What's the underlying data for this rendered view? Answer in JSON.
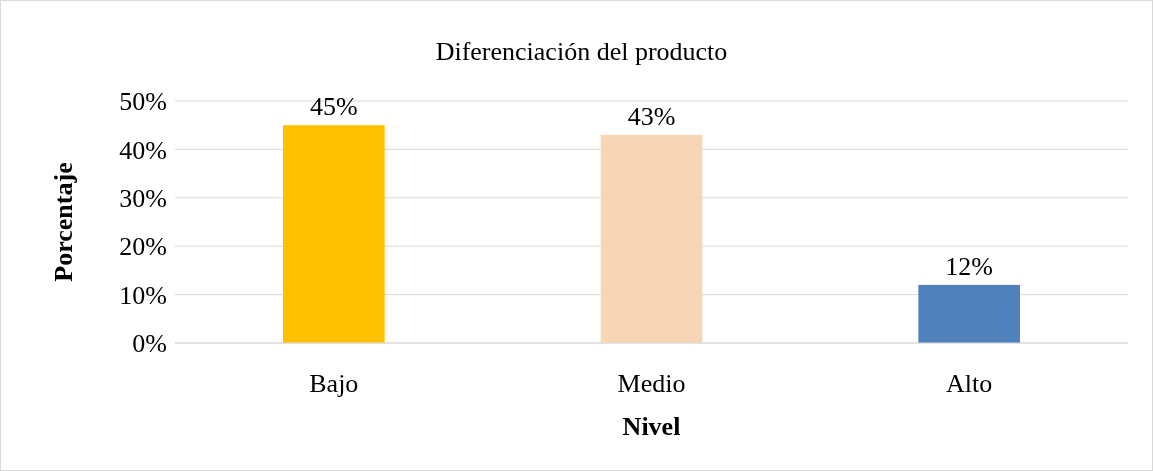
{
  "chart_data": {
    "type": "bar",
    "title": "Diferenciación del producto",
    "xlabel": "Nivel",
    "ylabel": "Porcentaje",
    "categories": [
      "Bajo",
      "Medio",
      "Alto"
    ],
    "values": [
      45,
      43,
      12
    ],
    "colors": [
      "#ffc000",
      "#f8d5b4",
      "#4f81bd"
    ],
    "value_labels": [
      "45%",
      "43%",
      "12%"
    ],
    "ylim": [
      0,
      50
    ],
    "yticks": [
      {
        "value": 0,
        "label": "0%"
      },
      {
        "value": 10,
        "label": "10%"
      },
      {
        "value": 20,
        "label": "20%"
      },
      {
        "value": 30,
        "label": "30%"
      },
      {
        "value": 40,
        "label": "40%"
      },
      {
        "value": 50,
        "label": "50%"
      }
    ],
    "grid": "y"
  }
}
